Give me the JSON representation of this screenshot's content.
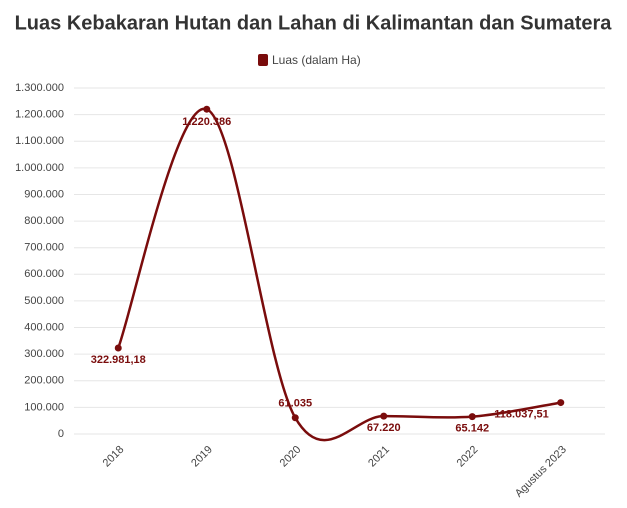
{
  "chart_data": {
    "type": "line",
    "title": "Luas Kebakaran Hutan dan Lahan di Kalimantan dan Sumatera",
    "categories": [
      "2018",
      "2019",
      "2020",
      "2021",
      "2022",
      "Agustus 2023"
    ],
    "series": [
      {
        "name": "Luas (dalam Ha)",
        "color": "#7a0c0c",
        "values": [
          322981.18,
          1220386,
          61035,
          67220,
          65142,
          118037.51
        ],
        "value_labels": [
          "322.981,18",
          "1.220.386",
          "61.035",
          "67.220",
          "65.142",
          "118.037,51"
        ]
      }
    ],
    "ylim": [
      0,
      1300000
    ],
    "yticks": [
      0,
      {
        "value": 100000,
        "label": "100.000"
      },
      {
        "value": 200000,
        "label": "200.000"
      },
      {
        "value": 300000,
        "label": "300.000"
      },
      {
        "value": 400000,
        "label": "400.000"
      },
      {
        "value": 500000,
        "label": "500.000"
      },
      {
        "value": 600000,
        "label": "600.000"
      },
      {
        "value": 700000,
        "label": "700.000"
      },
      {
        "value": 800000,
        "label": "800.000"
      },
      {
        "value": 900000,
        "label": "900.000"
      },
      {
        "value": 1000000,
        "label": "1.000.000"
      },
      {
        "value": 1100000,
        "label": "1.100.000"
      },
      {
        "value": 1200000,
        "label": "1.200.000"
      },
      {
        "value": 1300000,
        "label": "1.300.000"
      }
    ],
    "grid": true,
    "legend": "top"
  }
}
